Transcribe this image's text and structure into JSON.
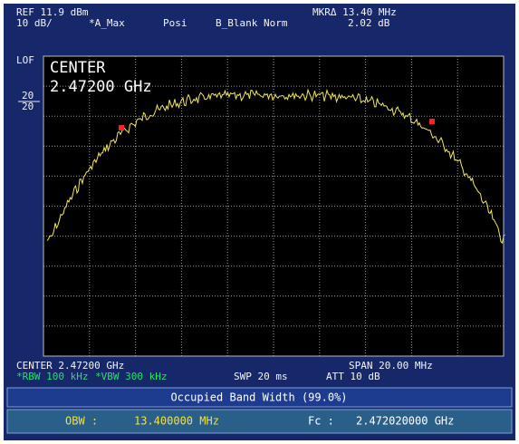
{
  "header": {
    "ref": "REF 11.9 dBm",
    "scale": "10 dB/",
    "trace_mode": "*A_Max",
    "detector": "Posi",
    "b_mode": "B_Blank Norm",
    "marker": "MKRΔ 13.40 MHz",
    "marker_value": "2.02 dB"
  },
  "left": {
    "lof": "LOF",
    "level_top": "20",
    "level_bottom": "20"
  },
  "overlay": {
    "line1": "CENTER",
    "line2": "2.47200 GHz"
  },
  "footer": {
    "center": "CENTER 2.47200 GHz",
    "span": "SPAN 20.00 MHz",
    "rbw": "*RBW 100 kHz",
    "vbw": "*VBW 300 kHz",
    "swp": "SWP 20 ms",
    "att": "ATT 10 dB"
  },
  "result": {
    "title": "Occupied Band Width (99.0%)",
    "obw_label": "OBW :",
    "obw_value": "13.400000 MHz",
    "fc_label": "Fc :",
    "fc_value": "2.472020000 GHz"
  }
}
